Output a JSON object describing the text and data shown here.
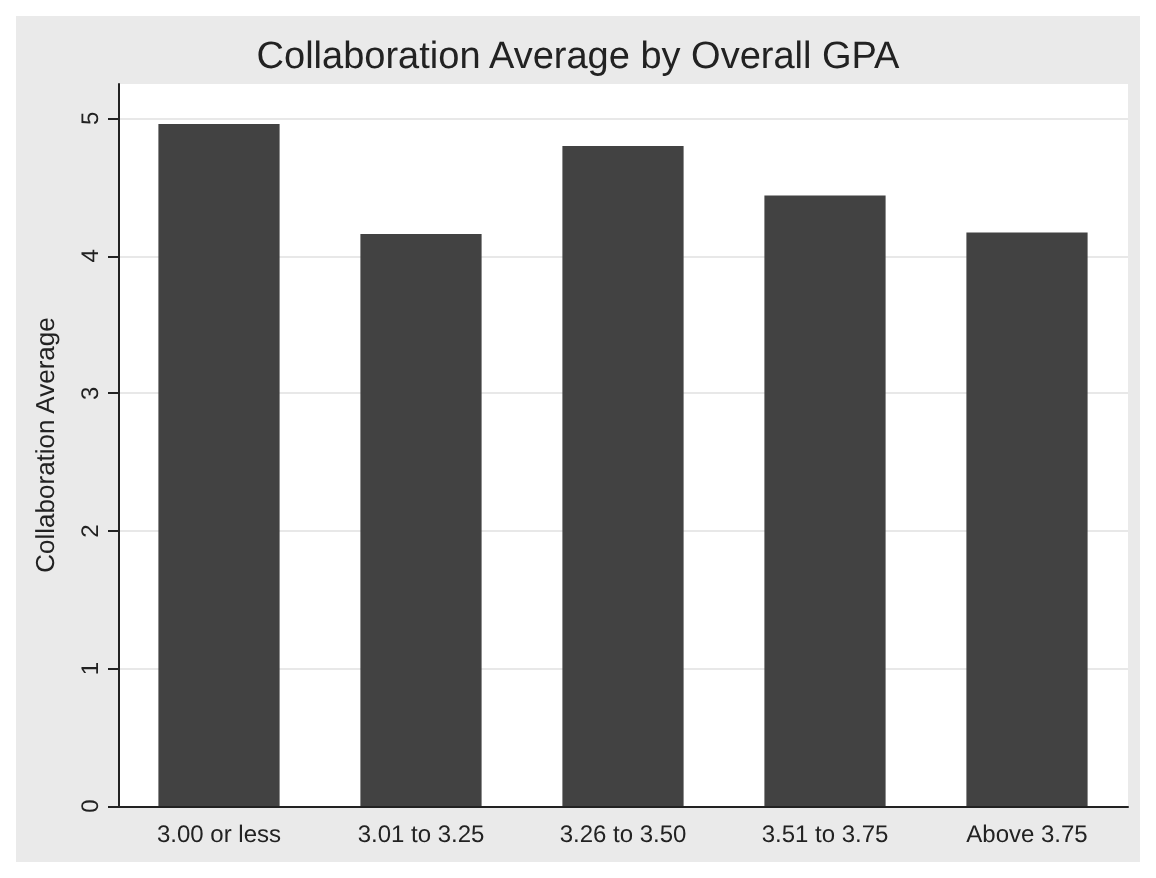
{
  "chart_data": {
    "type": "bar",
    "title": "Collaboration Average by Overall GPA",
    "ylabel": "Collaboration Average",
    "categories": [
      "3.00 or less",
      "3.01 to 3.25",
      "3.26 to 3.50",
      "3.51 to 3.75",
      "Above 3.75"
    ],
    "values": [
      4.96,
      4.16,
      4.8,
      4.44,
      4.17
    ],
    "color": "#424242",
    "ylim": [
      0,
      5.25
    ],
    "yticks": [
      0,
      1,
      2,
      3,
      4,
      5
    ],
    "grid": "y"
  }
}
